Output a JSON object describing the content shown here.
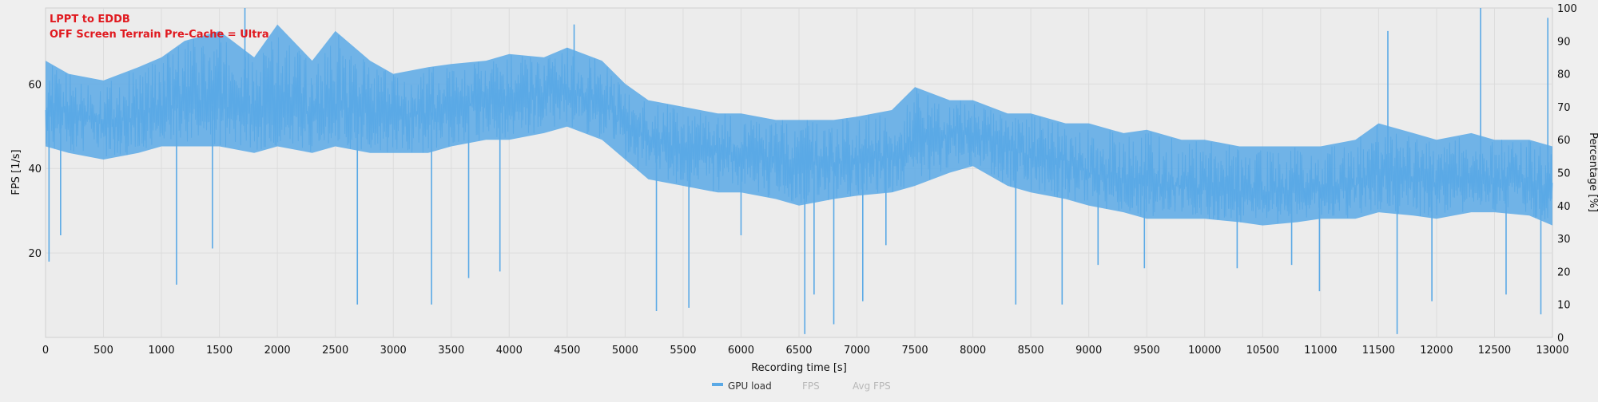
{
  "chart_data": {
    "type": "line",
    "annotations": [
      "LPPT to EDDB",
      "OFF Screen Terrain Pre-Cache = Ultra"
    ],
    "xlabel": "Recording time [s]",
    "ylabel_left": "FPS [1/s]",
    "ylabel_right": "Percentage [%]",
    "xlim": [
      0,
      13000
    ],
    "ylim_left": [
      0,
      78
    ],
    "ylim_right": [
      0,
      100
    ],
    "x_ticks": [
      0,
      500,
      1000,
      1500,
      2000,
      2500,
      3000,
      3500,
      4000,
      4500,
      5000,
      5500,
      6000,
      6500,
      7000,
      7500,
      8000,
      8500,
      9000,
      9500,
      10000,
      10500,
      11000,
      11500,
      12000,
      12500,
      13000
    ],
    "y_ticks_left": [
      20,
      40,
      60
    ],
    "y_ticks_right": [
      0,
      10,
      20,
      30,
      40,
      50,
      60,
      70,
      80,
      90,
      100
    ],
    "grid": true,
    "legend_position": "bottom-center",
    "legend": [
      {
        "label": "GPU load",
        "color": "#5aa9e6",
        "active": true
      },
      {
        "label": "FPS",
        "color": "#b8b8b8",
        "active": false
      },
      {
        "label": "Avg FPS",
        "color": "#b8b8b8",
        "active": false
      }
    ],
    "series": [
      {
        "name": "GPU load",
        "axis": "right",
        "color": "#5aa9e6",
        "x": [
          0,
          200,
          500,
          800,
          1000,
          1200,
          1500,
          1800,
          2000,
          2300,
          2500,
          2800,
          3000,
          3300,
          3500,
          3800,
          4000,
          4300,
          4500,
          4800,
          5000,
          5200,
          5500,
          5800,
          6000,
          6300,
          6500,
          6800,
          7000,
          7300,
          7500,
          7800,
          8000,
          8300,
          8500,
          8800,
          9000,
          9300,
          9500,
          9800,
          10000,
          10300,
          10500,
          10800,
          11000,
          11300,
          11500,
          11800,
          12000,
          12300,
          12500,
          12800,
          13000
        ],
        "y": [
          69,
          68,
          65,
          67,
          70,
          71,
          70,
          68,
          69,
          68,
          70,
          68,
          67,
          68,
          70,
          71,
          72,
          74,
          75,
          73,
          64,
          60,
          57,
          56,
          55,
          53,
          52,
          53,
          54,
          55,
          58,
          62,
          62,
          58,
          55,
          54,
          50,
          48,
          47,
          46,
          45,
          44,
          44,
          44,
          45,
          46,
          50,
          48,
          47,
          48,
          48,
          47,
          42
        ],
        "band_high": [
          84,
          80,
          78,
          82,
          85,
          90,
          93,
          85,
          95,
          84,
          93,
          84,
          80,
          82,
          83,
          84,
          86,
          85,
          88,
          84,
          77,
          72,
          70,
          68,
          68,
          66,
          66,
          66,
          67,
          69,
          76,
          72,
          72,
          68,
          68,
          65,
          65,
          62,
          63,
          60,
          60,
          58,
          58,
          58,
          58,
          60,
          65,
          62,
          60,
          62,
          60,
          60,
          58
        ],
        "band_low": [
          58,
          56,
          54,
          56,
          58,
          58,
          58,
          56,
          58,
          56,
          58,
          56,
          56,
          56,
          58,
          60,
          60,
          62,
          64,
          60,
          54,
          48,
          46,
          44,
          44,
          42,
          40,
          42,
          43,
          44,
          46,
          50,
          52,
          46,
          44,
          42,
          40,
          38,
          36,
          36,
          36,
          35,
          34,
          35,
          36,
          36,
          38,
          37,
          36,
          38,
          38,
          37,
          34
        ],
        "spikes": [
          [
            30,
            23
          ],
          [
            130,
            31
          ],
          [
            1130,
            16
          ],
          [
            1440,
            27
          ],
          [
            1720,
            100
          ],
          [
            2690,
            10
          ],
          [
            3330,
            10
          ],
          [
            3650,
            18
          ],
          [
            3920,
            20
          ],
          [
            4560,
            95
          ],
          [
            5270,
            8
          ],
          [
            5550,
            9
          ],
          [
            6000,
            31
          ],
          [
            6550,
            1
          ],
          [
            6630,
            13
          ],
          [
            6800,
            4
          ],
          [
            7050,
            11
          ],
          [
            7250,
            28
          ],
          [
            8370,
            10
          ],
          [
            8770,
            10
          ],
          [
            9080,
            22
          ],
          [
            9480,
            21
          ],
          [
            10280,
            21
          ],
          [
            10750,
            22
          ],
          [
            10990,
            14
          ],
          [
            11580,
            93
          ],
          [
            11660,
            1
          ],
          [
            11960,
            11
          ],
          [
            12380,
            100
          ],
          [
            12600,
            13
          ],
          [
            12900,
            7
          ],
          [
            12960,
            97
          ]
        ]
      }
    ]
  }
}
